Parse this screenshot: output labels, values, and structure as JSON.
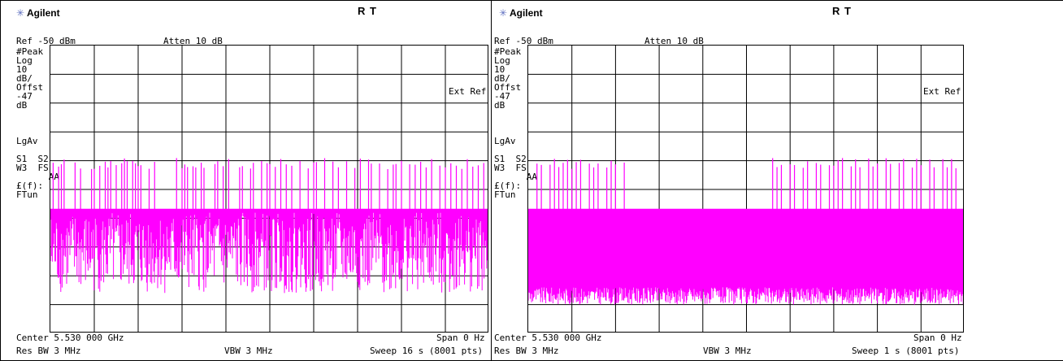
{
  "top_caption": "(………………………………………) …………… …………………………)",
  "colors": {
    "trace": "#ff00ff",
    "grid": "#000000",
    "background": "#ffffff"
  },
  "chart_data": [
    {
      "type": "line",
      "logo": "Agilent",
      "mode": "R  T",
      "ref": "Ref -50 dBm",
      "atten": "Atten 10 dB",
      "side_labels": [
        "#Peak",
        "Log",
        "10",
        "dB/",
        "Offst",
        "-47",
        "dB",
        "",
        "",
        "",
        "LgAv",
        "",
        "S1  S2",
        "W3  FS",
        "      AA",
        "£(f):",
        "FTun"
      ],
      "ext_ref": "Ext Ref",
      "center": "Center 5.530 000 GHz",
      "span": "Span 0 Hz",
      "res_bw": "Res BW 3 MHz",
      "vbw": "VBW 3 MHz",
      "sweep": "Sweep 16 s (8001 pts)",
      "xlim": [
        0,
        16
      ],
      "ylim": [
        -97,
        -47
      ],
      "grid": true,
      "noise_floor_dbm": [
        -90,
        -76
      ],
      "burst_level_dbm": -75.5,
      "spike_level_dbm": -66.5,
      "spike_times_s": [
        0.1,
        0.3,
        0.4,
        0.5,
        0.9,
        1.1,
        1.5,
        1.6,
        1.8,
        2.0,
        2.1,
        2.2,
        2.4,
        2.6,
        2.7,
        2.8,
        3.0,
        3.1,
        3.2,
        3.3,
        3.6,
        3.8,
        4.6,
        4.8,
        4.9,
        5.0,
        5.2,
        5.3,
        5.5,
        5.6,
        6.0,
        6.1,
        6.3,
        6.5,
        6.9,
        7.0,
        7.3,
        7.4,
        7.7,
        7.9,
        8.0,
        8.2,
        8.4,
        8.6,
        8.8,
        9.1,
        9.4,
        9.6,
        9.7,
        10.0,
        10.3,
        10.5,
        10.8,
        11.1,
        11.3,
        11.6,
        11.7,
        12.0,
        12.3,
        12.5,
        12.6,
        12.8,
        13.1,
        13.3,
        13.5,
        13.7,
        13.9,
        14.2,
        14.4,
        14.6,
        14.8,
        15.0,
        15.2,
        15.4,
        15.6,
        15.8
      ]
    },
    {
      "type": "line",
      "logo": "Agilent",
      "mode": "R  T",
      "ref": "Ref -50 dBm",
      "atten": "Atten 10 dB",
      "side_labels": [
        "#Peak",
        "Log",
        "10",
        "dB/",
        "Offst",
        "-47",
        "dB",
        "",
        "",
        "",
        "LgAv",
        "",
        "S1  S2",
        "W3  FS",
        "      AA",
        "£(f):",
        "FTun"
      ],
      "ext_ref": "Ext Ref",
      "center": "Center 5.530 000 GHz",
      "span": "Span 0 Hz",
      "res_bw": "Res BW 3 MHz",
      "vbw": "VBW 3 MHz",
      "sweep": "Sweep 1 s (8001 pts)",
      "xlim": [
        0,
        1
      ],
      "ylim": [
        -97,
        -47
      ],
      "grid": true,
      "noise_floor_dbm": [
        -92,
        -89
      ],
      "burst_level_dbm": -75.5,
      "spike_level_dbm": -66.5,
      "spike_times_s": [
        0.02,
        0.03,
        0.05,
        0.06,
        0.07,
        0.08,
        0.09,
        0.1,
        0.11,
        0.12,
        0.14,
        0.15,
        0.16,
        0.18,
        0.19,
        0.2,
        0.22,
        0.56,
        0.57,
        0.58,
        0.6,
        0.61,
        0.63,
        0.64,
        0.66,
        0.67,
        0.69,
        0.7,
        0.71,
        0.72,
        0.74,
        0.75,
        0.76,
        0.78,
        0.79,
        0.8,
        0.82,
        0.83,
        0.85,
        0.86,
        0.88,
        0.89,
        0.9,
        0.92,
        0.93,
        0.95,
        0.96,
        0.97,
        0.98
      ]
    }
  ]
}
